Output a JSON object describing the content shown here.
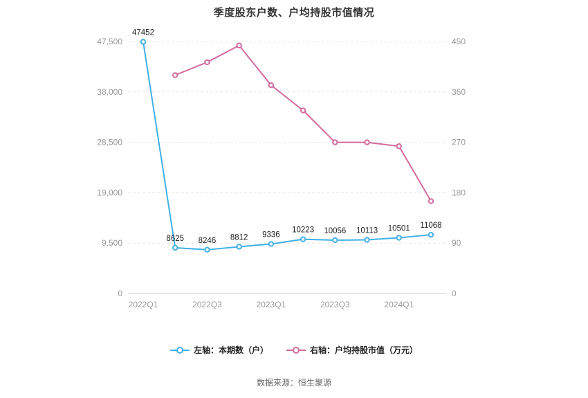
{
  "title": "季度股东户数、户均持股市值情况",
  "footer": "数据来源：恒生聚源",
  "legend": [
    {
      "label": "左轴：本期数（户）",
      "color": "#41b0e6"
    },
    {
      "label": "右轴：户均持股市值（万元）",
      "color": "#d36a9f"
    }
  ],
  "chart_data": {
    "type": "line",
    "title": "季度股东户数、户均持股市值情况",
    "x": [
      "2022Q1",
      "2022Q2",
      "2022Q3",
      "2022Q4",
      "2023Q1",
      "2023Q2",
      "2023Q3",
      "2023Q4",
      "2024Q1",
      "2024Q2"
    ],
    "x_ticks": [
      {
        "index": 0,
        "label": "2022Q1"
      },
      {
        "index": 2,
        "label": "2022Q3"
      },
      {
        "index": 4,
        "label": "2023Q1"
      },
      {
        "index": 6,
        "label": "2023Q3"
      },
      {
        "index": 8,
        "label": "2024Q1"
      }
    ],
    "series": [
      {
        "name": "左轴：本期数（户）",
        "axis": "left",
        "color": "#41b0e6",
        "values": [
          47452,
          8625,
          8246,
          8812,
          9336,
          10223,
          10056,
          10113,
          10501,
          11068
        ],
        "show_labels": true
      },
      {
        "name": "右轴：户均持股市值（万元）",
        "axis": "right",
        "color": "#d36a9f",
        "values": [
          null,
          390,
          413,
          443,
          372,
          327,
          270,
          270,
          263,
          165
        ],
        "show_labels": false
      }
    ],
    "left_axis": {
      "max": 47500,
      "ticks": [
        0,
        9500,
        19000,
        28500,
        38000,
        47500
      ],
      "labels": [
        "0",
        "9,500",
        "19,000",
        "28,500",
        "38,000",
        "47,500"
      ]
    },
    "right_axis": {
      "max": 450,
      "ticks": [
        0,
        90,
        180,
        270,
        360,
        450
      ],
      "labels": [
        "0",
        "90",
        "180",
        "270",
        "360",
        "450"
      ]
    },
    "grid": "horizontal-dashed",
    "legend_position": "bottom"
  }
}
